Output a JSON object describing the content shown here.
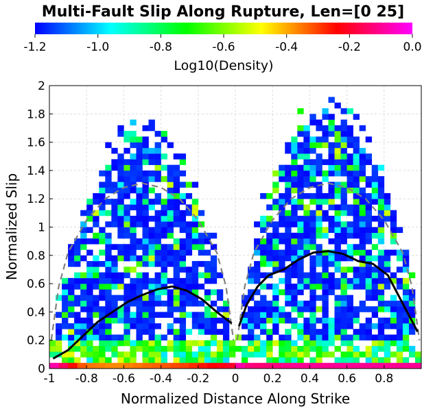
{
  "chart_data": {
    "type": "heatmap",
    "title": "Multi-Fault Slip Along Rupture, Len=[0 25]",
    "xlabel": "Normalized Distance Along Strike",
    "ylabel": "Normalized Slip",
    "xlim": [
      -1,
      1
    ],
    "ylim": [
      0,
      2
    ],
    "x_ticks": [
      "-1",
      "-0.8",
      "-0.6",
      "-0.4",
      "-0.2",
      "0",
      "0.2",
      "0.4",
      "0.6",
      "0.8"
    ],
    "y_ticks": [
      "0",
      "0.2",
      "0.4",
      "0.6",
      "0.8",
      "1",
      "1.2",
      "1.4",
      "1.6",
      "1.8",
      "2"
    ],
    "grid": true,
    "colorbar": {
      "label": "Log10(Density)",
      "range": [
        -1.2,
        0.0
      ],
      "ticks": [
        "-1.2",
        "-1.0",
        "-0.8",
        "-0.6",
        "-0.4",
        "-0.2",
        "0.0"
      ],
      "colormap": [
        "#0000ff",
        "#00ffff",
        "#00ff00",
        "#ffff00",
        "#ff0000",
        "#ff00ff"
      ]
    },
    "mean_slip_curve": {
      "color": "#000000",
      "segments": [
        {
          "x": [
            -0.98,
            -0.9,
            -0.82,
            -0.74,
            -0.66,
            -0.58,
            -0.5,
            -0.42,
            -0.34,
            -0.26,
            -0.18,
            -0.1,
            -0.02
          ],
          "y": [
            0.07,
            0.13,
            0.23,
            0.33,
            0.4,
            0.47,
            0.52,
            0.56,
            0.58,
            0.55,
            0.49,
            0.4,
            0.32
          ]
        },
        {
          "x": [
            0.02,
            0.06,
            0.12,
            0.18,
            0.26,
            0.34,
            0.42,
            0.5,
            0.58,
            0.66,
            0.74,
            0.82,
            0.9,
            0.98
          ],
          "y": [
            0.3,
            0.45,
            0.58,
            0.66,
            0.7,
            0.77,
            0.82,
            0.83,
            0.81,
            0.76,
            0.74,
            0.66,
            0.46,
            0.26
          ]
        }
      ]
    },
    "reference_curve": {
      "color": "#808080",
      "style": "dashed",
      "segments": [
        {
          "x": [
            -0.99,
            -0.95,
            -0.9,
            -0.8,
            -0.7,
            -0.6,
            -0.5,
            -0.4,
            -0.3,
            -0.2,
            -0.1,
            -0.05,
            -0.01
          ],
          "y": [
            0.2,
            0.58,
            0.82,
            1.05,
            1.2,
            1.28,
            1.31,
            1.28,
            1.2,
            1.05,
            0.82,
            0.58,
            0.2
          ]
        },
        {
          "x": [
            0.01,
            0.05,
            0.1,
            0.2,
            0.3,
            0.4,
            0.5,
            0.6,
            0.7,
            0.8,
            0.9,
            0.95,
            0.99
          ],
          "y": [
            0.2,
            0.58,
            0.82,
            1.05,
            1.2,
            1.28,
            1.31,
            1.28,
            1.2,
            1.05,
            0.82,
            0.58,
            0.2
          ]
        }
      ]
    },
    "bottom_strip": {
      "y": 0,
      "values": [
        -0.08,
        -0.15,
        -0.25,
        -0.32,
        -0.35,
        -0.36,
        -0.37,
        -0.37,
        -0.36,
        -0.35,
        -0.34,
        -0.33,
        -0.32,
        -0.31,
        -0.3,
        -0.28,
        -0.26,
        -0.24,
        -0.22,
        -0.2,
        -0.08,
        -0.12,
        -0.13,
        -0.13,
        -0.12,
        -0.11,
        -0.1,
        -0.1,
        -0.1,
        -0.1,
        -0.1,
        -0.1,
        -0.1,
        -0.1,
        -0.1,
        -0.1,
        -0.1,
        -0.1,
        -0.1,
        -0.1
      ]
    }
  }
}
